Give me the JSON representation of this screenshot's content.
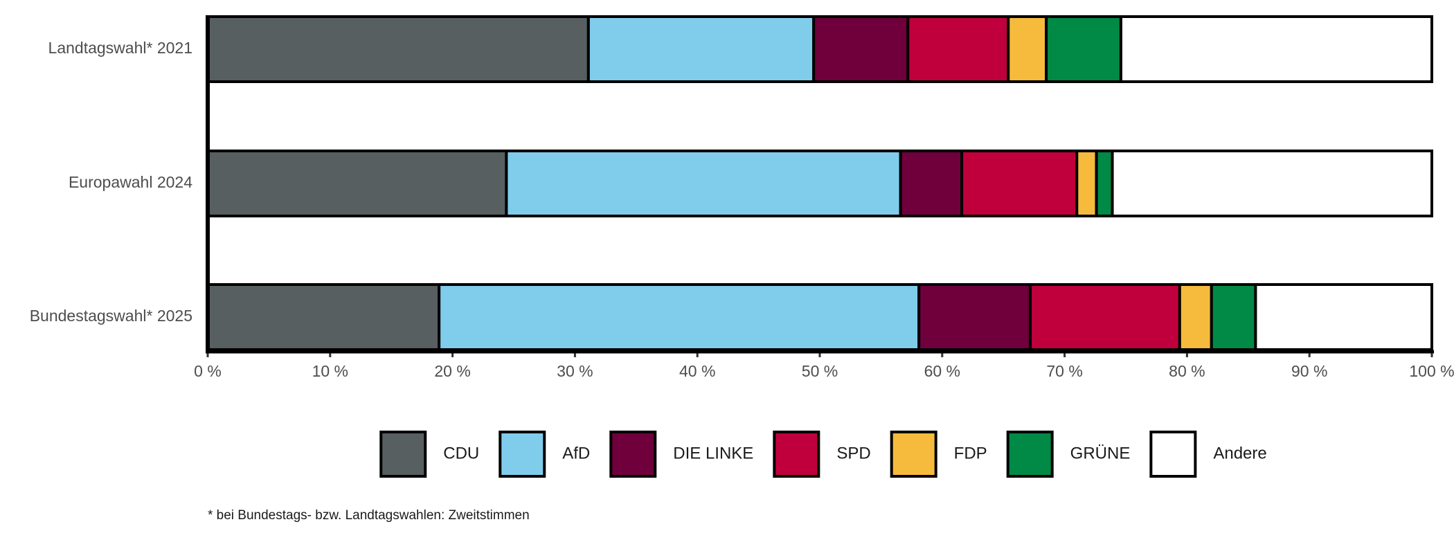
{
  "chart_data": {
    "type": "bar",
    "orientation": "horizontal",
    "stacked": true,
    "categories": [
      "Landtagswahl* 2021",
      "Europawahl 2024",
      "Bundestagswahl* 2025"
    ],
    "series": [
      {
        "name": "CDU",
        "color": "#575f60",
        "values": [
          31.1,
          24.4,
          18.9
        ]
      },
      {
        "name": "AfD",
        "color": "#80cceb",
        "values": [
          18.4,
          32.2,
          39.2
        ]
      },
      {
        "name": "DIE LINKE",
        "color": "#6f003c",
        "values": [
          7.7,
          5.0,
          9.1
        ]
      },
      {
        "name": "SPD",
        "color": "#c0003c",
        "values": [
          8.2,
          9.4,
          12.2
        ]
      },
      {
        "name": "FDP",
        "color": "#f6bb3d",
        "values": [
          3.1,
          1.6,
          2.6
        ]
      },
      {
        "name": "GRÜNE",
        "color": "#008a46",
        "values": [
          6.1,
          1.3,
          3.6
        ]
      },
      {
        "name": "Andere",
        "color": "#ffffff",
        "values": [
          25.4,
          26.1,
          14.4
        ]
      }
    ],
    "xlim": [
      0,
      100
    ],
    "xticks": [
      {
        "value": 0,
        "label": "0 %"
      },
      {
        "value": 10,
        "label": "10 %"
      },
      {
        "value": 20,
        "label": "20 %"
      },
      {
        "value": 30,
        "label": "30 %"
      },
      {
        "value": 40,
        "label": "40 %"
      },
      {
        "value": 50,
        "label": "50 %"
      },
      {
        "value": 60,
        "label": "60 %"
      },
      {
        "value": 70,
        "label": "70 %"
      },
      {
        "value": 80,
        "label": "80 %"
      },
      {
        "value": 90,
        "label": "90 %"
      },
      {
        "value": 100,
        "label": "100 %"
      }
    ],
    "legend_position": "bottom",
    "footnote": "* bei Bundestags- bzw. Landtagswahlen: Zweitstimmen"
  }
}
